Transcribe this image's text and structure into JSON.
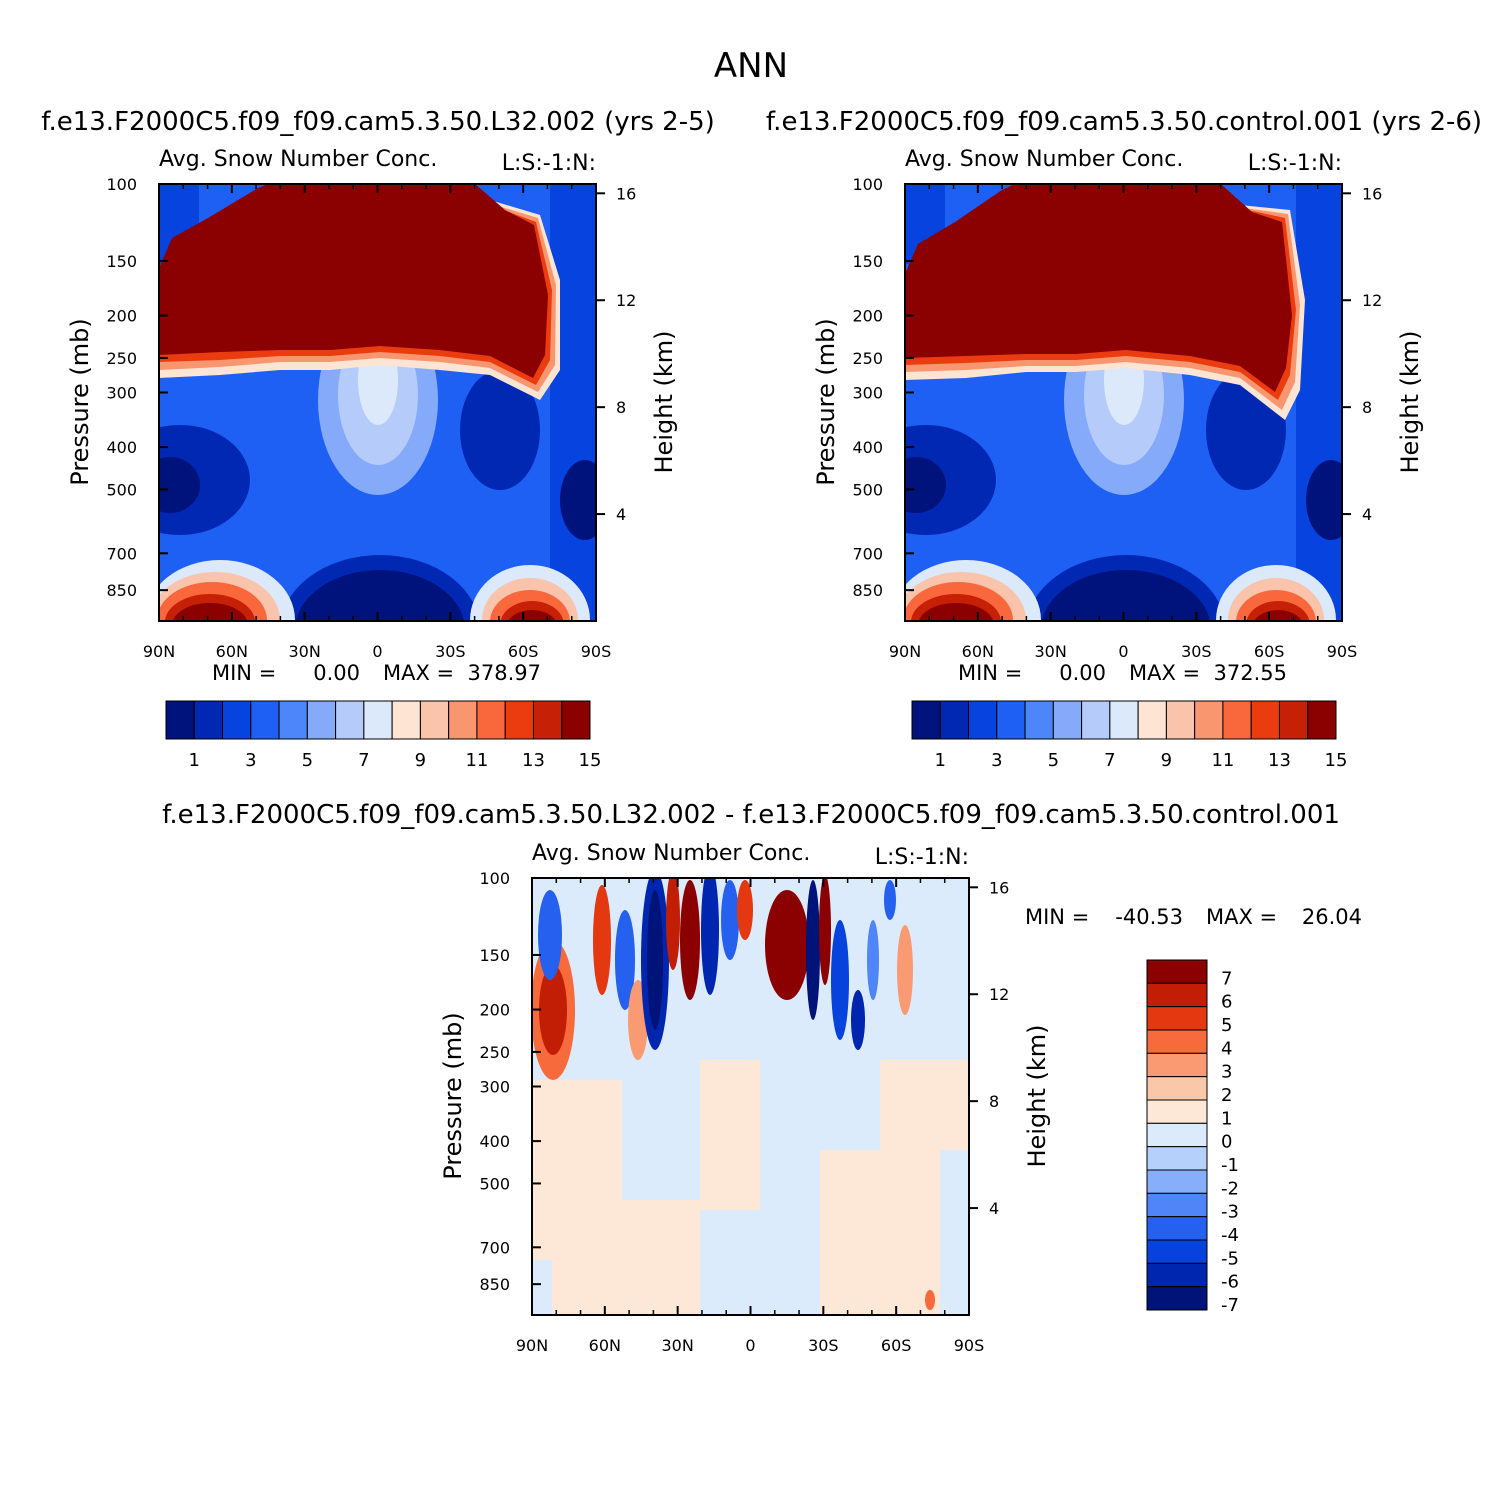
{
  "chart_data": [
    {
      "type": "heatmap",
      "panel": "top-left",
      "figure_title": "ANN",
      "case_title": "f.e13.F2000C5.f09_f09.cam5.3.50.L32.002 (yrs 2-5)",
      "plot_title": "Avg. Snow Number Conc.",
      "plot_label": "L:S:-1:N:",
      "ylabel": "Pressure (mb)",
      "y2label": "Height (km)",
      "xticks": [
        "90N",
        "60N",
        "30N",
        "0",
        "30S",
        "60S",
        "90S"
      ],
      "yticks": [
        "100",
        "150",
        "200",
        "250",
        "300",
        "400",
        "500",
        "700",
        "850"
      ],
      "y2ticks": [
        "16",
        "12",
        "8",
        "4"
      ],
      "min_label": "MIN =",
      "min_value": "0.00",
      "max_label": "MAX =",
      "max_value": "378.97",
      "colorbar_labels": [
        "1",
        "3",
        "5",
        "7",
        "9",
        "11",
        "13",
        "15"
      ],
      "colors": [
        "#00127c",
        "#0028b3",
        "#0643df",
        "#1f60f4",
        "#4d85fa",
        "#85aaf9",
        "#b5cbf9",
        "#dce9fa",
        "#fde4d3",
        "#f9c4ab",
        "#f8966f",
        "#f9683d",
        "#eb3c10",
        "#c62106",
        "#8b0000"
      ]
    },
    {
      "type": "heatmap",
      "panel": "top-right",
      "case_title": "f.e13.F2000C5.f09_f09.cam5.3.50.control.001 (yrs 2-6)",
      "plot_title": "Avg. Snow Number Conc.",
      "plot_label": "L:S:-1:N:",
      "ylabel": "Pressure (mb)",
      "y2label": "Height (km)",
      "xticks": [
        "90N",
        "60N",
        "30N",
        "0",
        "30S",
        "60S",
        "90S"
      ],
      "yticks": [
        "100",
        "150",
        "200",
        "250",
        "300",
        "400",
        "500",
        "700",
        "850"
      ],
      "y2ticks": [
        "16",
        "12",
        "8",
        "4"
      ],
      "min_label": "MIN =",
      "min_value": "0.00",
      "max_label": "MAX =",
      "max_value": "372.55",
      "colorbar_labels": [
        "1",
        "3",
        "5",
        "7",
        "9",
        "11",
        "13",
        "15"
      ],
      "colors": [
        "#00127c",
        "#0028b3",
        "#0643df",
        "#1f60f4",
        "#4d85fa",
        "#85aaf9",
        "#b5cbf9",
        "#dce9fa",
        "#fde4d3",
        "#f9c4ab",
        "#f8966f",
        "#f9683d",
        "#eb3c10",
        "#c62106",
        "#8b0000"
      ]
    },
    {
      "type": "heatmap",
      "panel": "bottom-difference",
      "case_title": "f.e13.F2000C5.f09_f09.cam5.3.50.L32.002 - f.e13.F2000C5.f09_f09.cam5.3.50.control.001",
      "plot_title": "Avg. Snow Number Conc.",
      "plot_label": "L:S:-1:N:",
      "ylabel": "Pressure (mb)",
      "y2label": "Height (km)",
      "xticks": [
        "90N",
        "60N",
        "30N",
        "0",
        "30S",
        "60S",
        "90S"
      ],
      "yticks": [
        "100",
        "150",
        "200",
        "250",
        "300",
        "400",
        "500",
        "700",
        "850"
      ],
      "y2ticks": [
        "16",
        "12",
        "8",
        "4"
      ],
      "min_label": "MIN =",
      "min_value": "-40.53",
      "max_label": "MAX =",
      "max_value": "26.04",
      "colorbar_labels": [
        "7",
        "6",
        "5",
        "4",
        "3",
        "2",
        "1",
        "0",
        "-1",
        "-2",
        "-3",
        "-4",
        "-5",
        "-6",
        "-7"
      ],
      "colors": [
        "#8b0000",
        "#c21e05",
        "#e43810",
        "#f66a3c",
        "#fa9a72",
        "#fbc7a9",
        "#fde7d6",
        "#dcebfb",
        "#b5d0fb",
        "#86aefb",
        "#5085f7",
        "#2560ef",
        "#0842dc",
        "#0026b0",
        "#001379"
      ]
    }
  ]
}
